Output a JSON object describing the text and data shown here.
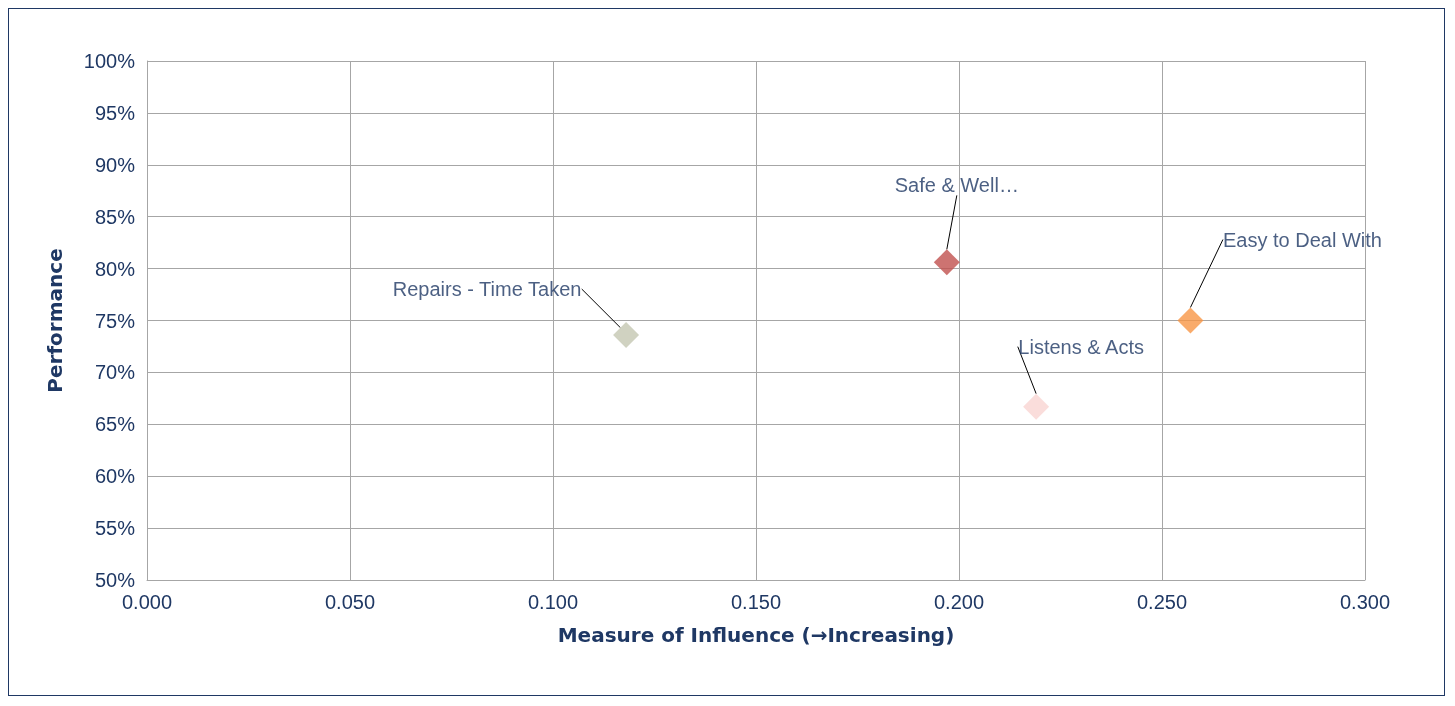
{
  "chart_data": {
    "type": "scatter",
    "xlabel": "Measure of Influence (→Increasing)",
    "ylabel": "Performance",
    "xlim": [
      0,
      0.3
    ],
    "xticks": [
      {
        "value": 0,
        "label": "0.000"
      },
      {
        "value": 0.05,
        "label": "0.050"
      },
      {
        "value": 0.1,
        "label": "0.100"
      },
      {
        "value": 0.15,
        "label": "0.150"
      },
      {
        "value": 0.2,
        "label": "0.200"
      },
      {
        "value": 0.25,
        "label": "0.250"
      },
      {
        "value": 0.3,
        "label": "0.300"
      }
    ],
    "ylim": [
      50,
      100
    ],
    "yticks": [
      {
        "value": 50,
        "label": "50%"
      },
      {
        "value": 55,
        "label": "55%"
      },
      {
        "value": 60,
        "label": "60%"
      },
      {
        "value": 65,
        "label": "65%"
      },
      {
        "value": 70,
        "label": "70%"
      },
      {
        "value": 75,
        "label": "75%"
      },
      {
        "value": 80,
        "label": "80%"
      },
      {
        "value": 85,
        "label": "85%"
      },
      {
        "value": 90,
        "label": "90%"
      },
      {
        "value": 95,
        "label": "95%"
      },
      {
        "value": 100,
        "label": "100%"
      }
    ],
    "grid": true,
    "marker": "diamond",
    "legend": false,
    "series": [
      {
        "name": "Repairs - Time Taken",
        "color": "#c4c7b1",
        "x": [
          0.118
        ],
        "values": [
          73.6
        ]
      },
      {
        "name": "Safe & Well…",
        "color": "#c0504d",
        "x": [
          0.197
        ],
        "values": [
          80.6
        ]
      },
      {
        "name": "Listens & Acts",
        "color": "#f9d4d2",
        "x": [
          0.219
        ],
        "values": [
          66.7
        ]
      },
      {
        "name": "Easy to Deal With",
        "color": "#f79646",
        "x": [
          0.257
        ],
        "values": [
          75.0
        ]
      }
    ]
  }
}
